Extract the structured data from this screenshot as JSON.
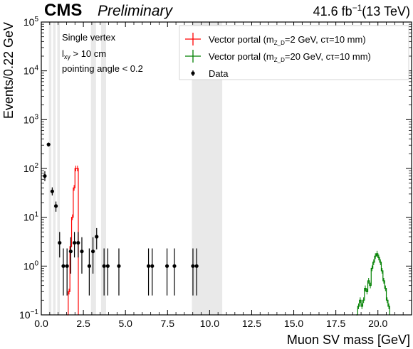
{
  "header": {
    "experiment": "CMS",
    "status": "Preliminary",
    "lumi_value": "41.6 fb",
    "lumi_exp": "−1",
    "energy": "(13 TeV)"
  },
  "selection": {
    "line1": "Single vertex",
    "line2_main": "l",
    "line2_sub": "xy",
    "line2_rest": " >  10 cm",
    "line3": "pointing angle < 0.2"
  },
  "chart_data": {
    "type": "histogram",
    "xlabel": "Muon SV mass [GeV]",
    "ylabel": "Events/0.22 GeV",
    "xlim": [
      0,
      22
    ],
    "ylim": [
      0.1,
      100000
    ],
    "yscale": "log",
    "bin_width": 0.22,
    "x_ticks": [
      {
        "value": 0,
        "label": "0.0"
      },
      {
        "value": 2.5,
        "label": "2.5"
      },
      {
        "value": 5,
        "label": "5.0"
      },
      {
        "value": 7.5,
        "label": "7.5"
      },
      {
        "value": 10,
        "label": "10.0"
      },
      {
        "value": 12.5,
        "label": "12.5"
      },
      {
        "value": 15,
        "label": "15.0"
      },
      {
        "value": 17.5,
        "label": "17.5"
      },
      {
        "value": 20,
        "label": "20.0"
      }
    ],
    "y_ticks": [
      {
        "value": 0.1,
        "base": "10",
        "exp": "−1"
      },
      {
        "value": 1,
        "base": "10",
        "exp": "0"
      },
      {
        "value": 10,
        "base": "10",
        "exp": "1"
      },
      {
        "value": 100,
        "base": "10",
        "exp": "2"
      },
      {
        "value": 1000,
        "base": "10",
        "exp": "3"
      },
      {
        "value": 10000,
        "base": "10",
        "exp": "4"
      },
      {
        "value": 100000,
        "base": "10",
        "exp": "5"
      }
    ],
    "legend_position": "top-right",
    "vetoed_mass_regions": [
      [
        0.45,
        0.6
      ],
      [
        0.7,
        0.85
      ],
      [
        0.95,
        1.1
      ],
      [
        2.95,
        3.25
      ],
      [
        3.55,
        3.85
      ],
      [
        8.95,
        10.75
      ]
    ],
    "series": [
      {
        "name_prefix": "Vector portal (m",
        "name_sub": "Z_D",
        "name_suffix": "=2 GeV, cτ=10 mm)",
        "kind": "step",
        "color": "#ff0000",
        "bins": [
          {
            "x": 1.52,
            "y": 0.1
          },
          {
            "x": 1.6,
            "y": 0.3
          },
          {
            "x": 1.7,
            "y": 2.5
          },
          {
            "x": 1.8,
            "y": 10
          },
          {
            "x": 1.9,
            "y": 40
          },
          {
            "x": 2.0,
            "y": 100
          },
          {
            "x": 2.1,
            "y": 100
          },
          {
            "x": 2.2,
            "y": 0.1
          }
        ]
      },
      {
        "name_prefix": "Vector portal (m",
        "name_sub": "Z_D",
        "name_suffix": "=20 GeV, cτ=10 mm)",
        "kind": "step",
        "color": "#008000",
        "bins": [
          {
            "x": 18.7,
            "y": 0.1
          },
          {
            "x": 18.8,
            "y": 0.15
          },
          {
            "x": 18.9,
            "y": 0.2
          },
          {
            "x": 19.0,
            "y": 0.15
          },
          {
            "x": 19.1,
            "y": 0.2
          },
          {
            "x": 19.2,
            "y": 0.35
          },
          {
            "x": 19.3,
            "y": 0.3
          },
          {
            "x": 19.4,
            "y": 0.5
          },
          {
            "x": 19.5,
            "y": 0.4
          },
          {
            "x": 19.6,
            "y": 0.9
          },
          {
            "x": 19.7,
            "y": 1.2
          },
          {
            "x": 19.8,
            "y": 1.6
          },
          {
            "x": 19.9,
            "y": 1.8
          },
          {
            "x": 20.0,
            "y": 1.5
          },
          {
            "x": 20.1,
            "y": 1.2
          },
          {
            "x": 20.2,
            "y": 0.8
          },
          {
            "x": 20.3,
            "y": 0.5
          },
          {
            "x": 20.4,
            "y": 0.35
          },
          {
            "x": 20.5,
            "y": 0.2
          },
          {
            "x": 20.6,
            "y": 0.15
          },
          {
            "x": 20.7,
            "y": 0.1
          }
        ]
      },
      {
        "name": "Data",
        "kind": "points",
        "color": "#000000",
        "points": [
          {
            "x": 0.21,
            "y": 70,
            "lo": 55,
            "hi": 88
          },
          {
            "x": 0.43,
            "y": 310,
            "lo": 280,
            "hi": 340
          },
          {
            "x": 0.65,
            "y": 34,
            "lo": 28,
            "hi": 41
          },
          {
            "x": 0.87,
            "y": 17,
            "lo": 13,
            "hi": 21
          },
          {
            "x": 1.09,
            "y": 3,
            "lo": 1.5,
            "hi": 5
          },
          {
            "x": 1.31,
            "y": 1,
            "lo": 0.25,
            "hi": 2.3
          },
          {
            "x": 1.53,
            "y": 1,
            "lo": 0.25,
            "hi": 2.3
          },
          {
            "x": 1.75,
            "y": 2,
            "lo": 0.7,
            "hi": 3.9
          },
          {
            "x": 1.97,
            "y": 3,
            "lo": 1.5,
            "hi": 5
          },
          {
            "x": 2.19,
            "y": 3,
            "lo": 1.5,
            "hi": 5
          },
          {
            "x": 2.41,
            "y": 2,
            "lo": 0.7,
            "hi": 3.9
          },
          {
            "x": 2.85,
            "y": 1,
            "lo": 0.25,
            "hi": 2.3
          },
          {
            "x": 3.07,
            "y": 2,
            "lo": 0.7,
            "hi": 3.9
          },
          {
            "x": 3.29,
            "y": 4,
            "lo": 2.2,
            "hi": 6
          },
          {
            "x": 3.73,
            "y": 1,
            "lo": 0.25,
            "hi": 2.3
          },
          {
            "x": 3.95,
            "y": 1,
            "lo": 0.25,
            "hi": 2.3
          },
          {
            "x": 4.61,
            "y": 1,
            "lo": 0.25,
            "hi": 2.3
          },
          {
            "x": 6.37,
            "y": 1,
            "lo": 0.25,
            "hi": 2.3
          },
          {
            "x": 6.59,
            "y": 1,
            "lo": 0.25,
            "hi": 2.3
          },
          {
            "x": 7.47,
            "y": 1,
            "lo": 0.25,
            "hi": 2.3
          },
          {
            "x": 7.91,
            "y": 1,
            "lo": 0.25,
            "hi": 2.3
          },
          {
            "x": 9.01,
            "y": 1,
            "lo": 0.25,
            "hi": 2.3
          },
          {
            "x": 9.23,
            "y": 1,
            "lo": 0.25,
            "hi": 2.3
          }
        ]
      }
    ]
  }
}
